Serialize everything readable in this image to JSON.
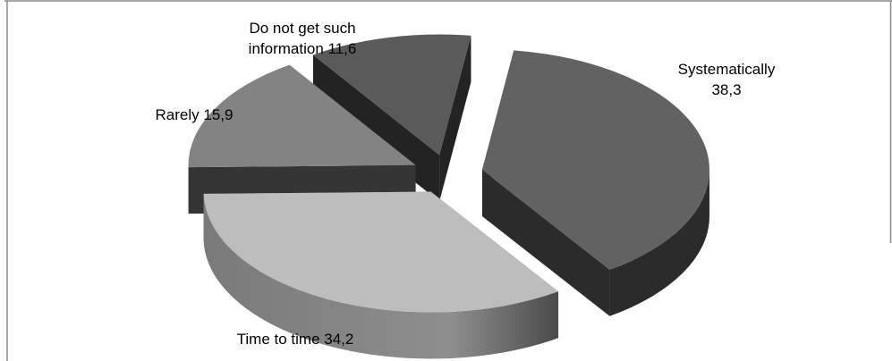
{
  "chart_data": {
    "type": "pie",
    "title": "",
    "slices": [
      {
        "label_lines": [
          "Systematically",
          "38,3"
        ],
        "value": 38.3,
        "color": "#626262",
        "side_color": "#2b2b2b"
      },
      {
        "label_lines": [
          "Time to time 34,2"
        ],
        "value": 34.2,
        "color": "#bdbdbd",
        "side_color": "#7c7c7c"
      },
      {
        "label_lines": [
          "Rarely 15,9"
        ],
        "value": 15.9,
        "color": "#838383",
        "side_color": "#353535"
      },
      {
        "label_lines": [
          "Do not get such",
          "information 11,6"
        ],
        "value": 11.6,
        "color": "#5a5a5a",
        "side_color": "#232323"
      }
    ],
    "legend": "none",
    "style": "3d-exploded"
  }
}
